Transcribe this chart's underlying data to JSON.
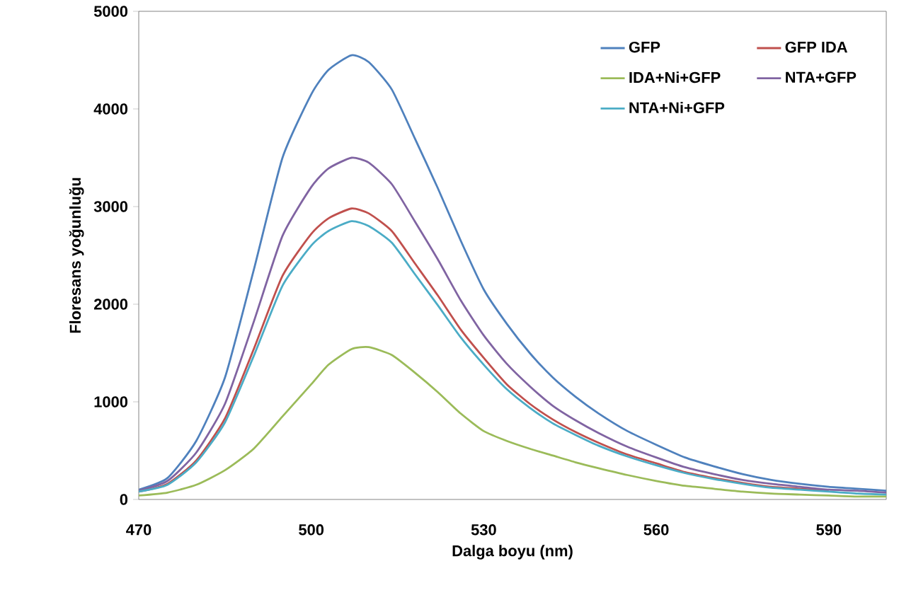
{
  "chart_data": {
    "type": "line",
    "xlabel": "Dalga boyu (nm)",
    "ylabel": "Floresans yoğunluğu",
    "x": [
      470,
      475,
      480,
      485,
      490,
      495,
      500,
      503,
      507,
      510,
      514,
      518,
      522,
      526,
      530,
      534,
      538,
      542,
      546,
      550,
      555,
      560,
      565,
      570,
      575,
      580,
      585,
      590,
      595,
      600
    ],
    "series": [
      {
        "name": "GFP",
        "color": "#4f81bd",
        "values": [
          100,
          220,
          600,
          1250,
          2350,
          3500,
          4150,
          4400,
          4550,
          4480,
          4200,
          3700,
          3190,
          2650,
          2150,
          1800,
          1500,
          1250,
          1050,
          880,
          700,
          560,
          430,
          340,
          260,
          200,
          160,
          130,
          110,
          90
        ]
      },
      {
        "name": "GFP IDA",
        "color": "#c0504d",
        "values": [
          80,
          160,
          400,
          830,
          1540,
          2290,
          2720,
          2880,
          2980,
          2930,
          2750,
          2420,
          2090,
          1740,
          1450,
          1180,
          980,
          820,
          690,
          580,
          460,
          370,
          280,
          220,
          170,
          130,
          110,
          90,
          null,
          null
        ]
      },
      {
        "name": "IDA+Ni+GFP",
        "color": "#9bbb59",
        "values": [
          40,
          70,
          150,
          300,
          520,
          850,
          1180,
          1380,
          1540,
          1560,
          1480,
          1300,
          1100,
          880,
          700,
          600,
          520,
          450,
          380,
          320,
          250,
          190,
          140,
          110,
          80,
          60,
          50,
          40,
          30,
          30
        ]
      },
      {
        "name": "NTA+GFP",
        "color": "#8064a2",
        "values": [
          90,
          190,
          480,
          980,
          1820,
          2700,
          3200,
          3390,
          3500,
          3450,
          3230,
          2850,
          2460,
          2040,
          1680,
          1390,
          1160,
          960,
          810,
          680,
          540,
          430,
          330,
          260,
          200,
          160,
          130,
          100,
          90,
          70
        ]
      },
      {
        "name": "NTA+Ni+GFP",
        "color": "#4bacc6",
        "values": [
          80,
          150,
          380,
          790,
          1470,
          2190,
          2600,
          2750,
          2850,
          2800,
          2630,
          2310,
          1990,
          1660,
          1380,
          1130,
          940,
          780,
          660,
          550,
          440,
          350,
          270,
          210,
          160,
          120,
          100,
          80,
          60,
          50
        ]
      }
    ],
    "xlim": [
      470,
      600
    ],
    "xticks": [
      470,
      500,
      530,
      560,
      590
    ],
    "ylim": [
      0,
      5000
    ],
    "yticks": [
      0,
      1000,
      2000,
      3000,
      4000,
      5000
    ],
    "grid": false,
    "legend": "top right",
    "marker": "none",
    "line_style": "solid"
  }
}
